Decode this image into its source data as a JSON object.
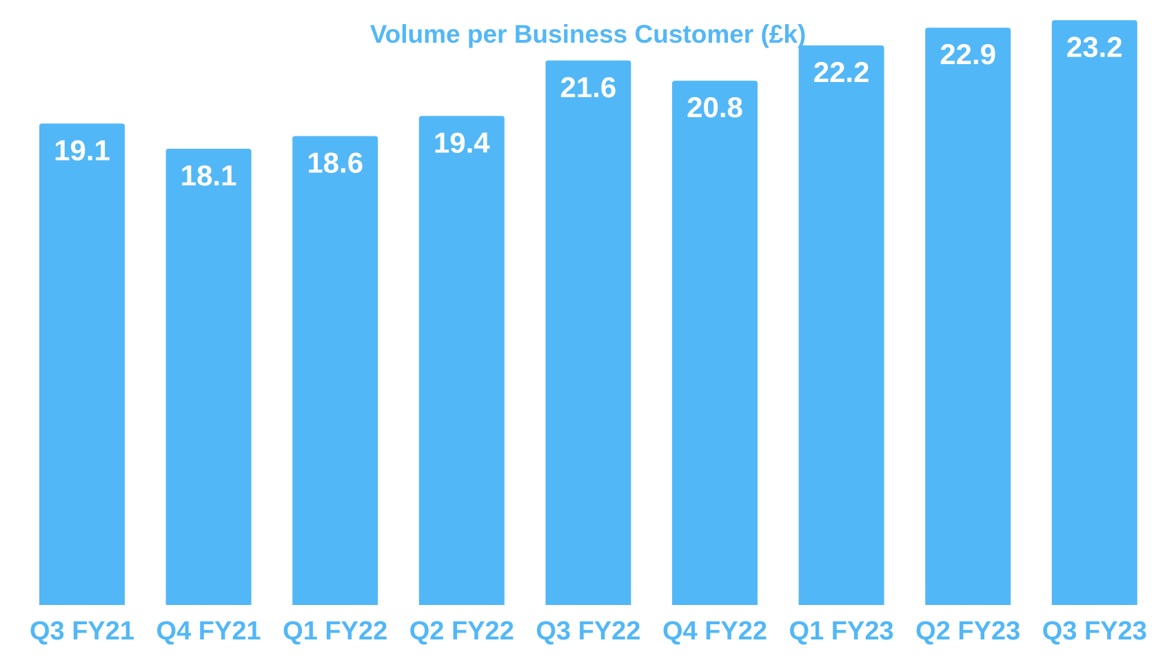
{
  "chart_data": {
    "type": "bar",
    "title": "Volume per Business Customer (£k)",
    "xlabel": "",
    "ylabel": "",
    "categories": [
      "Q3 FY21",
      "Q4 FY21",
      "Q1 FY22",
      "Q2 FY22",
      "Q3 FY22",
      "Q4 FY22",
      "Q1 FY23",
      "Q2 FY23",
      "Q3 FY23"
    ],
    "values": [
      19.1,
      18.1,
      18.6,
      19.4,
      21.6,
      20.8,
      22.2,
      22.9,
      23.2
    ],
    "data_labels": [
      "19.1",
      "18.1",
      "18.6",
      "19.4",
      "21.6",
      "20.8",
      "22.2",
      "22.9",
      "23.2"
    ],
    "ylim": [
      0,
      24
    ],
    "grid": false,
    "legend": "none",
    "colors": {
      "bar": "#52b7f7",
      "title": "#52b7f7",
      "tick_label": "#52b7f7",
      "data_label": "#ffffff"
    }
  }
}
